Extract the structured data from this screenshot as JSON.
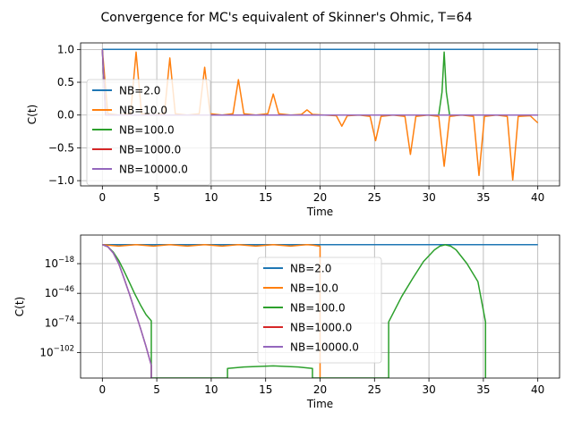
{
  "figure": {
    "title": "Convergence for MC's equivalent of Skinner's Ohmic, T=64"
  },
  "colors": {
    "NB=2.0": "#1f77b4",
    "NB=10.0": "#ff7f0e",
    "NB=100.0": "#2ca02c",
    "NB=1000.0": "#d62728",
    "NB=10000.0": "#9467bd",
    "grid": "#b0b0b0"
  },
  "chart_data": [
    {
      "type": "line",
      "xlabel": "Time",
      "ylabel": "C(t)",
      "xlim": [
        -2,
        42
      ],
      "ylim": [
        -1.08,
        1.1
      ],
      "yscale": "linear",
      "grid": true,
      "legend_loc": "center-left",
      "xticks": [
        0,
        5,
        10,
        15,
        20,
        25,
        30,
        35,
        40
      ],
      "xtick_labels": [
        "0",
        "5",
        "10",
        "15",
        "20",
        "25",
        "30",
        "35",
        "40"
      ],
      "yticks": [
        1.0,
        0.5,
        0.0,
        -0.5,
        -1.0
      ],
      "ytick_labels": [
        "1.0",
        "0.5",
        "0.0",
        "−0.5",
        "−1.0"
      ],
      "series": [
        {
          "name": "NB=2.0",
          "x": [
            0,
            40
          ],
          "y": [
            1.0,
            1.0
          ]
        },
        {
          "name": "NB=10.0",
          "x": [
            0,
            0.5,
            1.5,
            2.6,
            3.1,
            3.6,
            4.7,
            5.7,
            6.2,
            6.7,
            7.8,
            8.9,
            9.4,
            9.9,
            11.0,
            12.0,
            12.5,
            13.0,
            14.1,
            15.2,
            15.7,
            16.2,
            17.3,
            18.3,
            18.8,
            19.3,
            20.4,
            21.5,
            22.0,
            22.5,
            23.6,
            24.6,
            25.1,
            25.6,
            26.7,
            27.8,
            28.3,
            28.8,
            29.9,
            30.9,
            31.4,
            31.9,
            33.0,
            34.1,
            34.6,
            35.1,
            36.2,
            37.2,
            37.7,
            38.2,
            39.3,
            40.0
          ],
          "y": [
            1.0,
            0.02,
            0.0,
            0.02,
            0.96,
            0.02,
            0.0,
            0.02,
            0.87,
            0.02,
            0.0,
            0.02,
            0.73,
            0.02,
            0.0,
            0.02,
            0.54,
            0.02,
            0.0,
            0.02,
            0.32,
            0.02,
            0.0,
            0.01,
            0.08,
            0.01,
            0.0,
            -0.01,
            -0.17,
            -0.01,
            0.0,
            -0.02,
            -0.39,
            -0.02,
            0.0,
            -0.02,
            -0.6,
            -0.02,
            0.0,
            -0.02,
            -0.78,
            -0.02,
            0.0,
            -0.02,
            -0.92,
            -0.02,
            0.0,
            -0.02,
            -0.99,
            -0.02,
            -0.01,
            -0.12
          ]
        },
        {
          "name": "NB=100.0",
          "x": [
            0,
            0.3,
            30.9,
            31.2,
            31.4,
            31.6,
            31.9,
            40.0
          ],
          "y": [
            1.0,
            0.0,
            0.0,
            0.35,
            0.96,
            0.35,
            0.0,
            0.0
          ]
        },
        {
          "name": "NB=1000.0",
          "x": [
            0,
            0.3,
            40.0
          ],
          "y": [
            1.0,
            0.0,
            0.0
          ]
        },
        {
          "name": "NB=10000.0",
          "x": [
            0,
            0.3,
            40.0
          ],
          "y": [
            1.0,
            0.0,
            0.0
          ]
        }
      ]
    },
    {
      "type": "line",
      "xlabel": "Time",
      "ylabel": "C(t)",
      "xlim": [
        -2,
        42
      ],
      "ylim": [
        -126,
        9
      ],
      "yscale": "log",
      "grid": true,
      "legend_loc": "center",
      "xticks": [
        0,
        5,
        10,
        15,
        20,
        25,
        30,
        35,
        40
      ],
      "xtick_labels": [
        "0",
        "5",
        "10",
        "15",
        "20",
        "25",
        "30",
        "35",
        "40"
      ],
      "yticks": [
        -18,
        -46,
        -74,
        -102
      ],
      "ytick_labels": [
        {
          "base": "10",
          "exp": "−18"
        },
        {
          "base": "10",
          "exp": "−46"
        },
        {
          "base": "10",
          "exp": "−74"
        },
        {
          "base": "10",
          "exp": "−102"
        }
      ],
      "series": [
        {
          "name": "NB=2.0",
          "x": [
            0,
            40
          ],
          "y": [
            0,
            0
          ]
        },
        {
          "name": "NB=10.0",
          "x": [
            0,
            0.5,
            1.5,
            2.6,
            3.1,
            3.6,
            4.7,
            5.7,
            6.2,
            6.7,
            7.8,
            8.9,
            9.4,
            9.9,
            11.0,
            12.0,
            12.5,
            13.0,
            14.1,
            15.2,
            15.7,
            16.2,
            17.3,
            18.3,
            18.8,
            19.3,
            19.8,
            20.0,
            20.0
          ],
          "y": [
            0,
            -0.5,
            -1.5,
            -0.5,
            0,
            -0.5,
            -1.5,
            -0.5,
            0,
            -0.5,
            -1.5,
            -0.5,
            0,
            -0.5,
            -1.5,
            -0.5,
            0,
            -0.5,
            -1.5,
            -0.5,
            0,
            -0.5,
            -1.5,
            -0.5,
            0,
            -0.5,
            -1.2,
            -1.5,
            -126
          ]
        },
        {
          "name": "NB=100.0",
          "x": [
            0,
            0.5,
            1,
            1.5,
            2,
            2.5,
            3,
            3.5,
            4,
            4.5,
            4.5,
            11.5,
            11.5,
            13,
            15.7,
            18,
            19.3,
            19.3,
            26.3,
            26.3,
            27.5,
            28.5,
            29.5,
            30.5,
            31,
            31.5,
            32,
            32.5,
            33.5,
            34.5,
            35.2,
            35.2
          ],
          "y": [
            0,
            -2,
            -7,
            -15,
            -25,
            -36,
            -47,
            -57,
            -66,
            -72,
            -126,
            -126,
            -117,
            -115.5,
            -114.5,
            -115.5,
            -117,
            -126,
            -126,
            -73,
            -49,
            -32,
            -16,
            -5,
            -1.5,
            -0.2,
            -1.5,
            -5,
            -18,
            -35,
            -73,
            -126
          ]
        },
        {
          "name": "NB=1000.0",
          "x": [
            0,
            0.5,
            1,
            1.5,
            2,
            2.5,
            3,
            3.5,
            4,
            4.5,
            4.5
          ],
          "y": [
            0,
            -2,
            -8,
            -18,
            -32,
            -47,
            -63,
            -79,
            -96,
            -114,
            -126
          ]
        },
        {
          "name": "NB=10000.0",
          "x": [
            0,
            0.5,
            1,
            1.5,
            2,
            2.5,
            3,
            3.5,
            4,
            4.5,
            4.5
          ],
          "y": [
            0,
            -2,
            -8,
            -18,
            -32,
            -47,
            -63,
            -79,
            -96,
            -114,
            -126
          ]
        }
      ]
    }
  ]
}
